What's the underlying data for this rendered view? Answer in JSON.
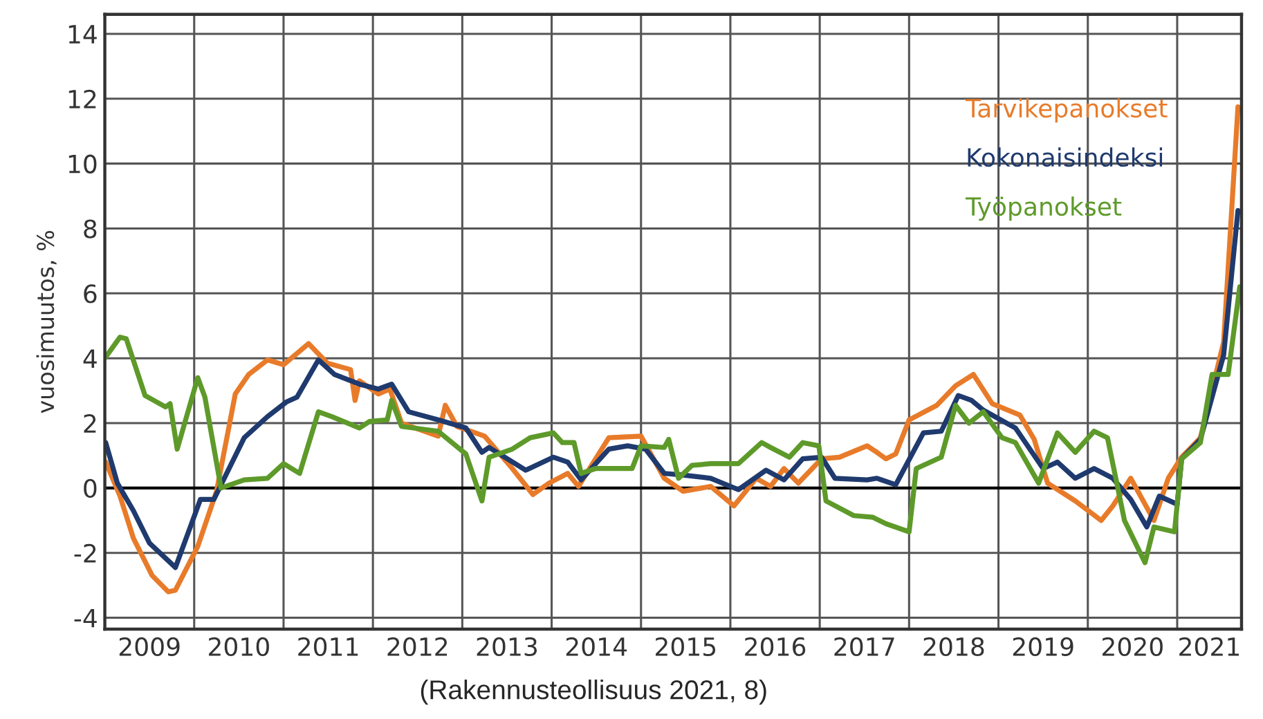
{
  "chart_data": {
    "type": "line",
    "ylabel": "vuosimuutos, %",
    "annotations": [
      "(Rakennusteollisuus 2021, 8)"
    ],
    "xlim": [
      2009,
      2021.72
    ],
    "ylim": [
      -4.35,
      14.6
    ],
    "xticks": [
      {
        "value": 2010,
        "label": null
      },
      {
        "value": 2011,
        "label": null
      },
      {
        "value": 2012,
        "label": null
      },
      {
        "value": 2013,
        "label": null
      },
      {
        "value": 2014,
        "label": null
      },
      {
        "value": 2015,
        "label": null
      },
      {
        "value": 2016,
        "label": null
      },
      {
        "value": 2017,
        "label": null
      },
      {
        "value": 2018,
        "label": null
      },
      {
        "value": 2019,
        "label": null
      },
      {
        "value": 2020,
        "label": null
      },
      {
        "value": 2021,
        "label": null
      },
      {
        "value": 2009.5,
        "label": "2009"
      },
      {
        "value": 2010.5,
        "label": "2010"
      },
      {
        "value": 2011.5,
        "label": "2011"
      },
      {
        "value": 2012.5,
        "label": "2012"
      },
      {
        "value": 2013.5,
        "label": "2013"
      },
      {
        "value": 2014.5,
        "label": "2014"
      },
      {
        "value": 2015.5,
        "label": "2015"
      },
      {
        "value": 2016.5,
        "label": "2016"
      },
      {
        "value": 2017.5,
        "label": "2017"
      },
      {
        "value": 2018.5,
        "label": "2018"
      },
      {
        "value": 2019.5,
        "label": "2019"
      },
      {
        "value": 2020.5,
        "label": "2020"
      },
      {
        "value": 2021.36,
        "label": "2021"
      }
    ],
    "yticks": [
      -4,
      -2,
      0,
      2,
      4,
      6,
      8,
      10,
      12,
      14
    ],
    "grid": true,
    "legend": "top right",
    "line_style": "solid",
    "ref_lines": [
      {
        "axis": "y",
        "value": 0,
        "color": "#000000"
      }
    ],
    "series": [
      {
        "name": "Tarvikepanokset",
        "color": "#e87b2a",
        "x": [
          2009.01,
          2009.17,
          2009.32,
          2009.53,
          2009.71,
          2009.79,
          2010.04,
          2010.25,
          2010.46,
          2010.61,
          2010.82,
          2011.0,
          2011.28,
          2011.49,
          2011.75,
          2011.8,
          2011.85,
          2012.06,
          2012.19,
          2012.32,
          2012.73,
          2012.81,
          2012.94,
          2013.25,
          2013.56,
          2013.79,
          2013.97,
          2014.18,
          2014.3,
          2014.64,
          2015.0,
          2015.26,
          2015.47,
          2015.78,
          2016.04,
          2016.29,
          2016.45,
          2016.6,
          2016.76,
          2017.02,
          2017.22,
          2017.53,
          2017.64,
          2017.74,
          2017.85,
          2018.0,
          2018.31,
          2018.52,
          2018.72,
          2018.93,
          2019.24,
          2019.4,
          2019.55,
          2019.86,
          2020.15,
          2020.28,
          2020.48,
          2020.74,
          2020.9,
          2021.05,
          2021.26,
          2021.52,
          2021.68
        ],
        "values": [
          0.8,
          -0.25,
          -1.55,
          -2.7,
          -3.2,
          -3.15,
          -1.8,
          -0.1,
          2.9,
          3.5,
          3.95,
          3.8,
          4.45,
          3.85,
          3.65,
          2.7,
          3.3,
          2.9,
          3.05,
          2.0,
          1.6,
          2.55,
          1.9,
          1.6,
          0.6,
          -0.2,
          0.15,
          0.45,
          0.05,
          1.55,
          1.6,
          0.3,
          -0.1,
          0.05,
          -0.55,
          0.3,
          0.05,
          0.6,
          0.15,
          0.9,
          0.95,
          1.3,
          1.1,
          0.9,
          1.05,
          2.1,
          2.55,
          3.15,
          3.5,
          2.6,
          2.25,
          1.5,
          0.15,
          -0.4,
          -1.0,
          -0.55,
          0.3,
          -1.0,
          0.3,
          0.95,
          1.55,
          4.5,
          11.75
        ]
      },
      {
        "name": "Kokonaisindeksi",
        "color": "#1f3a6e",
        "x": [
          2009.01,
          2009.14,
          2009.32,
          2009.5,
          2009.79,
          2010.07,
          2010.22,
          2010.56,
          2010.82,
          2011.03,
          2011.15,
          2011.39,
          2011.57,
          2011.85,
          2012.06,
          2012.21,
          2012.4,
          2012.73,
          2013.04,
          2013.22,
          2013.3,
          2013.71,
          2014.02,
          2014.18,
          2014.33,
          2014.64,
          2014.85,
          2015.05,
          2015.26,
          2015.47,
          2015.78,
          2016.09,
          2016.4,
          2016.6,
          2016.81,
          2017.02,
          2017.17,
          2017.53,
          2017.64,
          2017.85,
          2018.16,
          2018.36,
          2018.55,
          2018.7,
          2018.83,
          2019.19,
          2019.5,
          2019.66,
          2019.86,
          2020.07,
          2020.28,
          2020.48,
          2020.66,
          2020.8,
          2021.0,
          2021.05,
          2021.26,
          2021.52,
          2021.68
        ],
        "values": [
          1.4,
          0.15,
          -0.7,
          -1.7,
          -2.45,
          -0.35,
          -0.35,
          1.55,
          2.2,
          2.65,
          2.8,
          3.95,
          3.5,
          3.2,
          3.05,
          3.2,
          2.35,
          2.1,
          1.85,
          1.1,
          1.25,
          0.55,
          0.95,
          0.8,
          0.25,
          1.2,
          1.3,
          1.2,
          0.45,
          0.4,
          0.3,
          -0.05,
          0.55,
          0.25,
          0.9,
          0.95,
          0.3,
          0.25,
          0.3,
          0.1,
          1.7,
          1.75,
          2.85,
          2.7,
          2.4,
          1.85,
          0.6,
          0.8,
          0.3,
          0.6,
          0.3,
          -0.35,
          -1.2,
          -0.25,
          -0.5,
          0.9,
          1.5,
          4.1,
          8.55
        ]
      },
      {
        "name": "Työpanokset",
        "color": "#5e9a2a",
        "x": [
          2009.0,
          2009.17,
          2009.24,
          2009.45,
          2009.68,
          2009.73,
          2009.81,
          2010.04,
          2010.12,
          2010.3,
          2010.56,
          2010.82,
          2011.0,
          2011.18,
          2011.39,
          2011.54,
          2011.85,
          2011.96,
          2012.16,
          2012.21,
          2012.32,
          2012.73,
          2013.04,
          2013.22,
          2013.3,
          2013.56,
          2013.76,
          2014.02,
          2014.12,
          2014.25,
          2014.33,
          2014.49,
          2014.9,
          2015.0,
          2015.26,
          2015.31,
          2015.42,
          2015.57,
          2015.78,
          2016.09,
          2016.35,
          2016.45,
          2016.66,
          2016.81,
          2016.99,
          2017.07,
          2017.38,
          2017.59,
          2017.74,
          2018.0,
          2018.08,
          2018.36,
          2018.52,
          2018.67,
          2018.83,
          2019.04,
          2019.19,
          2019.45,
          2019.66,
          2019.86,
          2020.07,
          2020.22,
          2020.41,
          2020.64,
          2020.74,
          2020.97,
          2021.05,
          2021.26,
          2021.39,
          2021.57,
          2021.7
        ],
        "values": [
          4.0,
          4.65,
          4.6,
          2.85,
          2.5,
          2.6,
          1.2,
          3.4,
          2.8,
          0.0,
          0.25,
          0.3,
          0.75,
          0.45,
          2.35,
          2.2,
          1.85,
          2.05,
          2.1,
          2.7,
          1.9,
          1.75,
          1.05,
          -0.4,
          0.95,
          1.2,
          1.55,
          1.7,
          1.4,
          1.4,
          0.45,
          0.6,
          0.6,
          1.3,
          1.25,
          1.5,
          0.3,
          0.7,
          0.75,
          0.75,
          1.4,
          1.25,
          0.95,
          1.4,
          1.3,
          -0.4,
          -0.85,
          -0.9,
          -1.1,
          -1.35,
          0.6,
          0.95,
          2.55,
          2.0,
          2.35,
          1.55,
          1.4,
          0.15,
          1.7,
          1.1,
          1.75,
          1.55,
          -1.0,
          -2.3,
          -1.2,
          -1.35,
          0.9,
          1.4,
          3.5,
          3.5,
          6.2
        ]
      }
    ]
  }
}
